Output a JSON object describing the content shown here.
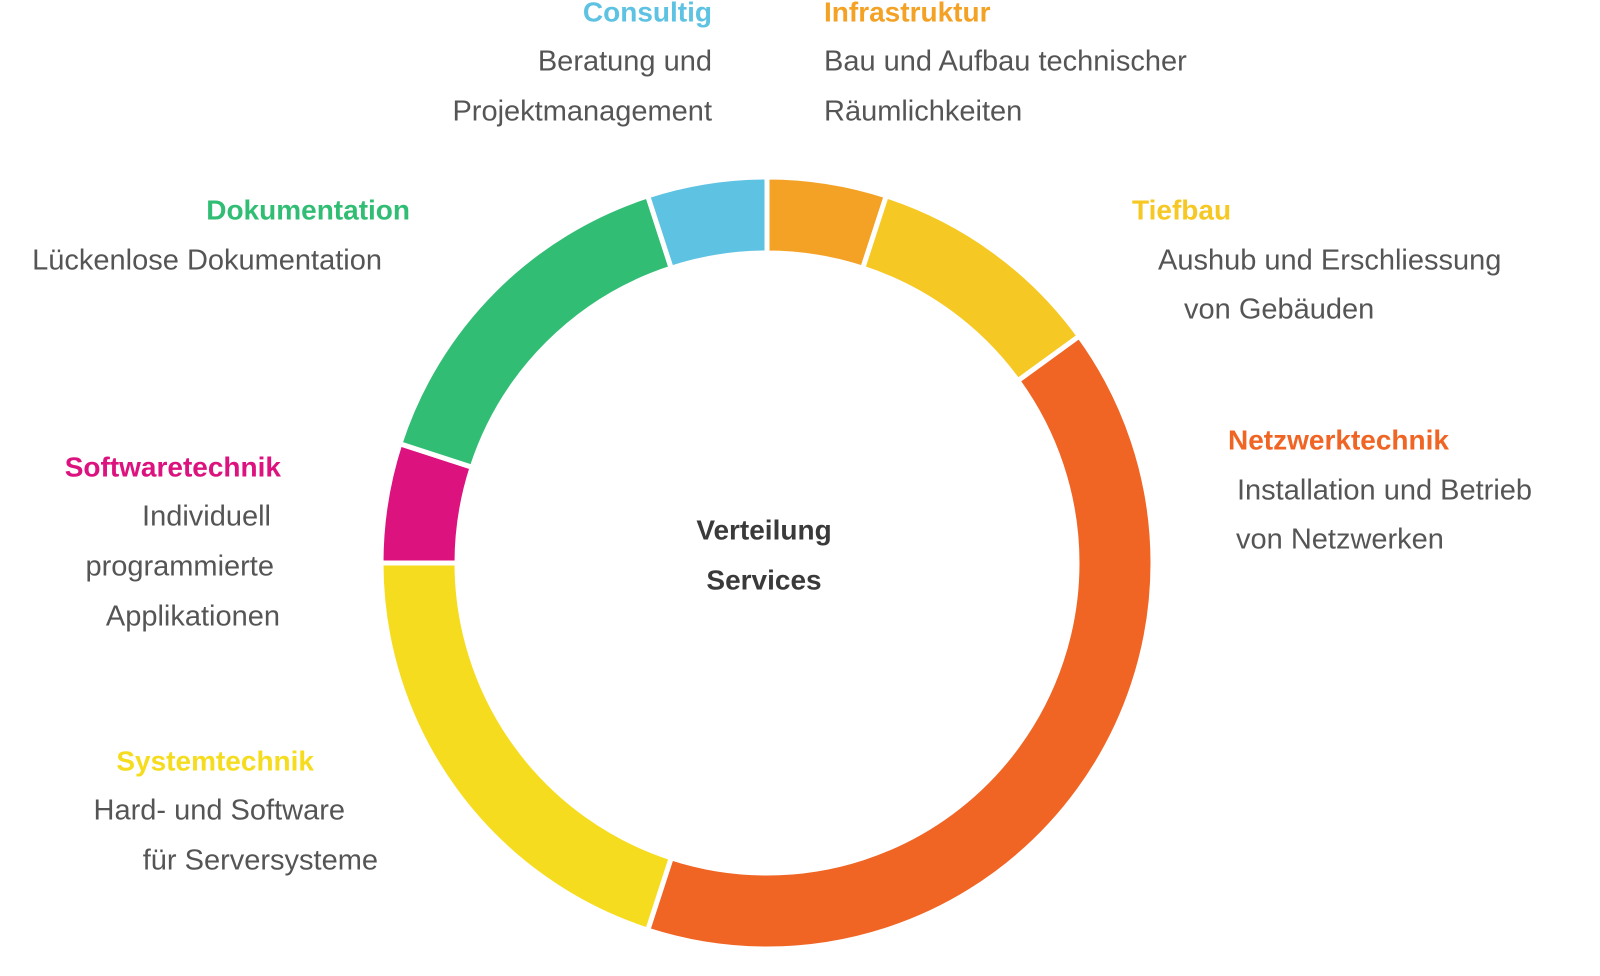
{
  "chart_data": {
    "type": "donut",
    "center_label": [
      "Verteilung",
      "Services"
    ],
    "categories": [
      "Infrastruktur",
      "Tiefbau",
      "Netzwerktechnik",
      "Systemtechnik",
      "Softwaretechnik",
      "Dokumentation",
      "Consultig"
    ],
    "descriptions": [
      [
        "Bau und Aufbau technischer",
        "Räumlichkeiten"
      ],
      [
        "Aushub und Erschliessung",
        "von Gebäuden"
      ],
      [
        "Installation und Betrieb",
        "von Netzwerken"
      ],
      [
        "Hard- und Software",
        "für Serversysteme"
      ],
      [
        "Individuell",
        "programmierte",
        "Applikationen"
      ],
      [
        "Lückenlose Dokumentation"
      ],
      [
        "Beratung und",
        "Projektmanagement"
      ]
    ],
    "values": [
      5,
      10,
      40,
      20,
      5,
      15,
      5
    ],
    "colors": [
      "#f4a226",
      "#f6c823",
      "#f06424",
      "#f6dc1f",
      "#dc127e",
      "#31be74",
      "#5ec2e3"
    ]
  }
}
